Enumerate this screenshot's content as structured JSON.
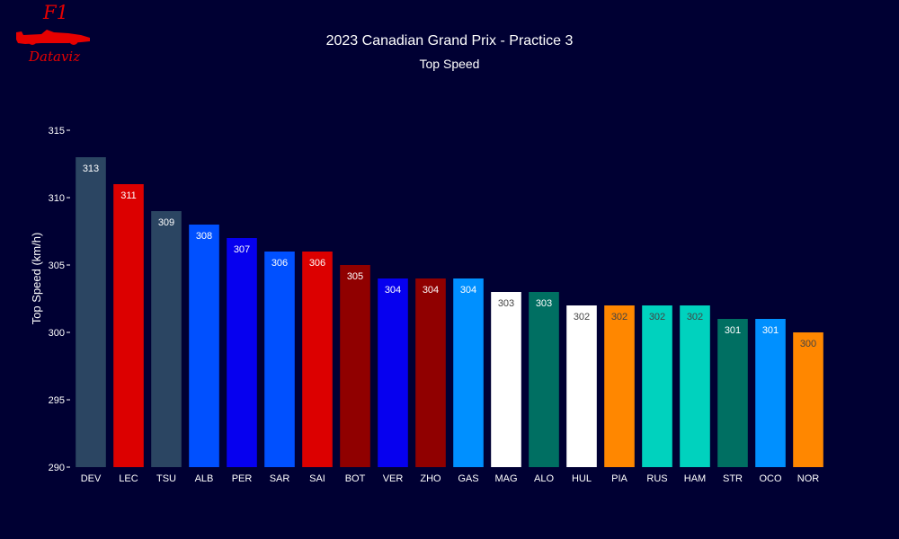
{
  "logo": {
    "top_text": "F1",
    "bottom_text": "Dataviz",
    "color": "#e60000"
  },
  "chart_data": {
    "type": "bar",
    "title": "2023 Canadian Grand Prix - Practice 3",
    "subtitle": "Top Speed",
    "xlabel": "",
    "ylabel": "Top Speed (km/h)",
    "ylim": [
      290,
      315
    ],
    "yticks": [
      290,
      295,
      300,
      305,
      310,
      315
    ],
    "grid": false,
    "background": "#000033",
    "categories": [
      "DEV",
      "LEC",
      "TSU",
      "ALB",
      "PER",
      "SAR",
      "SAI",
      "BOT",
      "VER",
      "ZHO",
      "GAS",
      "MAG",
      "ALO",
      "HUL",
      "PIA",
      "RUS",
      "HAM",
      "STR",
      "OCO",
      "NOR"
    ],
    "values": [
      313,
      311,
      309,
      308,
      307,
      306,
      306,
      305,
      304,
      304,
      304,
      303,
      303,
      302,
      302,
      302,
      302,
      301,
      301,
      300
    ],
    "colors": [
      "#2b4562",
      "#dc0000",
      "#2b4562",
      "#0050ff",
      "#0600ef",
      "#0050ff",
      "#dc0000",
      "#900000",
      "#0600ef",
      "#900000",
      "#0090ff",
      "#ffffff",
      "#006f62",
      "#ffffff",
      "#ff8700",
      "#00d2be",
      "#00d2be",
      "#006f62",
      "#0090ff",
      "#ff8700"
    ],
    "label_colors": [
      "#ffffff",
      "#ffffff",
      "#ffffff",
      "#ffffff",
      "#ffffff",
      "#ffffff",
      "#ffffff",
      "#ffffff",
      "#ffffff",
      "#ffffff",
      "#ffffff",
      "#444444",
      "#ffffff",
      "#444444",
      "#444444",
      "#444444",
      "#444444",
      "#ffffff",
      "#ffffff",
      "#444444"
    ]
  }
}
